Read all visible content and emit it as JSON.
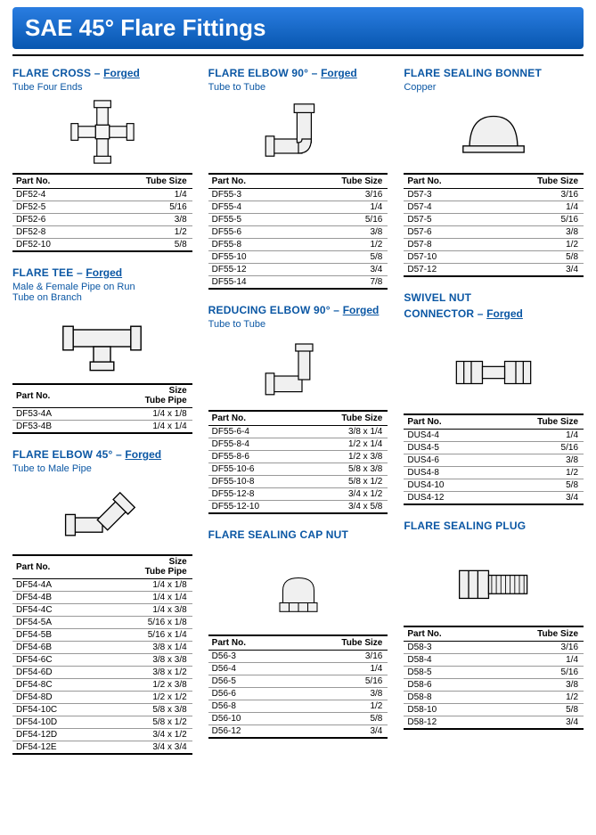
{
  "page": {
    "banner": "SAE 45° Flare Fittings",
    "colors": {
      "banner_bg_top": "#2a7de1",
      "banner_bg_bottom": "#0857b0",
      "heading": "#0b57a4",
      "rule": "#000000",
      "row_border": "#999999"
    },
    "headers": {
      "part_no": "Part No.",
      "tube_size": "Tube Size",
      "size_line1": "Size",
      "size_line2": "Tube Pipe"
    }
  },
  "col1": {
    "cross": {
      "title": "FLARE CROSS – ",
      "sub": "Forged",
      "desc": "Tube Four Ends",
      "rows": [
        {
          "pn": "DF52-4",
          "sz": "1/4"
        },
        {
          "pn": "DF52-5",
          "sz": "5/16"
        },
        {
          "pn": "DF52-6",
          "sz": "3/8"
        },
        {
          "pn": "DF52-8",
          "sz": "1/2"
        },
        {
          "pn": "DF52-10",
          "sz": "5/8"
        }
      ]
    },
    "tee": {
      "title": "FLARE TEE – ",
      "sub": "Forged",
      "desc": "Male & Female Pipe on Run\nTube on Branch",
      "rows": [
        {
          "pn": "DF53-4A",
          "sz": "1/4 x 1/8"
        },
        {
          "pn": "DF53-4B",
          "sz": "1/4 x 1/4"
        }
      ]
    },
    "elbow45": {
      "title": "FLARE ELBOW 45° – ",
      "sub": "Forged",
      "desc": "Tube to Male Pipe",
      "rows": [
        {
          "pn": "DF54-4A",
          "sz": "1/4 x 1/8"
        },
        {
          "pn": "DF54-4B",
          "sz": "1/4 x 1/4"
        },
        {
          "pn": "DF54-4C",
          "sz": "1/4 x 3/8"
        },
        {
          "pn": "DF54-5A",
          "sz": "5/16 x 1/8"
        },
        {
          "pn": "DF54-5B",
          "sz": "5/16 x 1/4"
        },
        {
          "pn": "DF54-6B",
          "sz": "3/8 x 1/4"
        },
        {
          "pn": "DF54-6C",
          "sz": "3/8 x 3/8"
        },
        {
          "pn": "DF54-6D",
          "sz": "3/8 x 1/2"
        },
        {
          "pn": "DF54-8C",
          "sz": "1/2 x 3/8"
        },
        {
          "pn": "DF54-8D",
          "sz": "1/2 x 1/2"
        },
        {
          "pn": "DF54-10C",
          "sz": "5/8 x 3/8"
        },
        {
          "pn": "DF54-10D",
          "sz": "5/8 x 1/2"
        },
        {
          "pn": "DF54-12D",
          "sz": "3/4 x 1/2"
        },
        {
          "pn": "DF54-12E",
          "sz": "3/4 x 3/4"
        }
      ]
    }
  },
  "col2": {
    "elbow90": {
      "title": "FLARE ELBOW 90° – ",
      "sub": "Forged",
      "desc": "Tube to Tube",
      "rows": [
        {
          "pn": "DF55-3",
          "sz": "3/16"
        },
        {
          "pn": "DF55-4",
          "sz": "1/4"
        },
        {
          "pn": "DF55-5",
          "sz": "5/16"
        },
        {
          "pn": "DF55-6",
          "sz": "3/8"
        },
        {
          "pn": "DF55-8",
          "sz": "1/2"
        },
        {
          "pn": "DF55-10",
          "sz": "5/8"
        },
        {
          "pn": "DF55-12",
          "sz": "3/4"
        },
        {
          "pn": "DF55-14",
          "sz": "7/8"
        }
      ]
    },
    "redelbow": {
      "title": "REDUCING ELBOW 90° – ",
      "sub": "Forged",
      "desc": "Tube to Tube",
      "rows": [
        {
          "pn": "DF55-6-4",
          "sz": "3/8 x 1/4"
        },
        {
          "pn": "DF55-8-4",
          "sz": "1/2 x 1/4"
        },
        {
          "pn": "DF55-8-6",
          "sz": "1/2 x 3/8"
        },
        {
          "pn": "DF55-10-6",
          "sz": "5/8 x 3/8"
        },
        {
          "pn": "DF55-10-8",
          "sz": "5/8 x 1/2"
        },
        {
          "pn": "DF55-12-8",
          "sz": "3/4 x 1/2"
        },
        {
          "pn": "DF55-12-10",
          "sz": "3/4 x 5/8"
        }
      ]
    },
    "capnut": {
      "title": "FLARE SEALING CAP NUT",
      "desc": "",
      "rows": [
        {
          "pn": "D56-3",
          "sz": "3/16"
        },
        {
          "pn": "D56-4",
          "sz": "1/4"
        },
        {
          "pn": "D56-5",
          "sz": "5/16"
        },
        {
          "pn": "D56-6",
          "sz": "3/8"
        },
        {
          "pn": "D56-8",
          "sz": "1/2"
        },
        {
          "pn": "D56-10",
          "sz": "5/8"
        },
        {
          "pn": "D56-12",
          "sz": "3/4"
        }
      ]
    }
  },
  "col3": {
    "bonnet": {
      "title": "FLARE SEALING BONNET",
      "desc": "Copper",
      "rows": [
        {
          "pn": "D57-3",
          "sz": "3/16"
        },
        {
          "pn": "D57-4",
          "sz": "1/4"
        },
        {
          "pn": "D57-5",
          "sz": "5/16"
        },
        {
          "pn": "D57-6",
          "sz": "3/8"
        },
        {
          "pn": "D57-8",
          "sz": "1/2"
        },
        {
          "pn": "D57-10",
          "sz": "5/8"
        },
        {
          "pn": "D57-12",
          "sz": "3/4"
        }
      ]
    },
    "swivel": {
      "title_l1": "SWIVEL NUT",
      "title_l2": "CONNECTOR – ",
      "sub": "Forged",
      "desc": "",
      "rows": [
        {
          "pn": "DUS4-4",
          "sz": "1/4"
        },
        {
          "pn": "DUS4-5",
          "sz": "5/16"
        },
        {
          "pn": "DUS4-6",
          "sz": "3/8"
        },
        {
          "pn": "DUS4-8",
          "sz": "1/2"
        },
        {
          "pn": "DUS4-10",
          "sz": "5/8"
        },
        {
          "pn": "DUS4-12",
          "sz": "3/4"
        }
      ]
    },
    "plug": {
      "title": "FLARE SEALING PLUG",
      "desc": "",
      "rows": [
        {
          "pn": "D58-3",
          "sz": "3/16"
        },
        {
          "pn": "D58-4",
          "sz": "1/4"
        },
        {
          "pn": "D58-5",
          "sz": "5/16"
        },
        {
          "pn": "D58-6",
          "sz": "3/8"
        },
        {
          "pn": "D58-8",
          "sz": "1/2"
        },
        {
          "pn": "D58-10",
          "sz": "5/8"
        },
        {
          "pn": "D58-12",
          "sz": "3/4"
        }
      ]
    }
  }
}
